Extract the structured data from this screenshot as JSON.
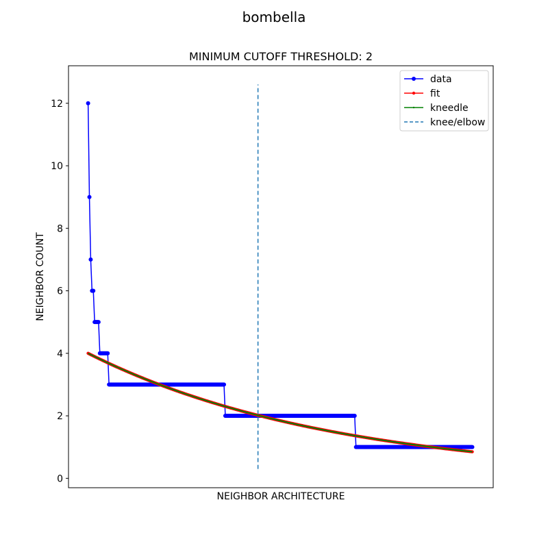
{
  "figure_title": "bombella",
  "chart_data": {
    "type": "line",
    "title": "MINIMUM CUTOFF THRESHOLD: 2",
    "xlabel": "NEIGHBOR ARCHITECTURE",
    "ylabel": "NEIGHBOR COUNT",
    "x_ticks_visible": false,
    "xlim": [
      -3,
      62
    ],
    "ylim": [
      -0.3,
      13.2
    ],
    "yticks": [
      0,
      2,
      4,
      6,
      8,
      10,
      12
    ],
    "grid": false,
    "legend_position": "top-right",
    "series": [
      {
        "name": "data",
        "color": "#0000ff",
        "marker": "circle",
        "steps": [
          {
            "x_start": 0,
            "x_end": 0,
            "y": 12
          },
          {
            "x_start": 0.2,
            "x_end": 0.2,
            "y": 9
          },
          {
            "x_start": 0.4,
            "x_end": 0.4,
            "y": 7
          },
          {
            "x_start": 0.6,
            "x_end": 0.8,
            "y": 6
          },
          {
            "x_start": 1.0,
            "x_end": 1.6,
            "y": 5
          },
          {
            "x_start": 1.8,
            "x_end": 3.0,
            "y": 4
          },
          {
            "x_start": 3.2,
            "x_end": 20.8,
            "y": 3
          },
          {
            "x_start": 21.0,
            "x_end": 40.8,
            "y": 2
          },
          {
            "x_start": 41.0,
            "x_end": 58.8,
            "y": 1
          }
        ]
      },
      {
        "name": "fit",
        "color": "#ff0000",
        "marker": "small-dot",
        "function": "exponential",
        "x_range": [
          0,
          58.8
        ],
        "y_start": 4.0,
        "y_end": 0.85
      },
      {
        "name": "kneedle",
        "color": "#008000",
        "marker": "pixel",
        "function": "exponential",
        "x_range": [
          0,
          58.8
        ],
        "y_start": 4.0,
        "y_end": 0.85
      },
      {
        "name": "knee/elbow",
        "color": "#1f77b4",
        "style": "dashed",
        "type": "vline",
        "x": 26,
        "y_range": [
          0.3,
          12.6
        ]
      }
    ]
  }
}
